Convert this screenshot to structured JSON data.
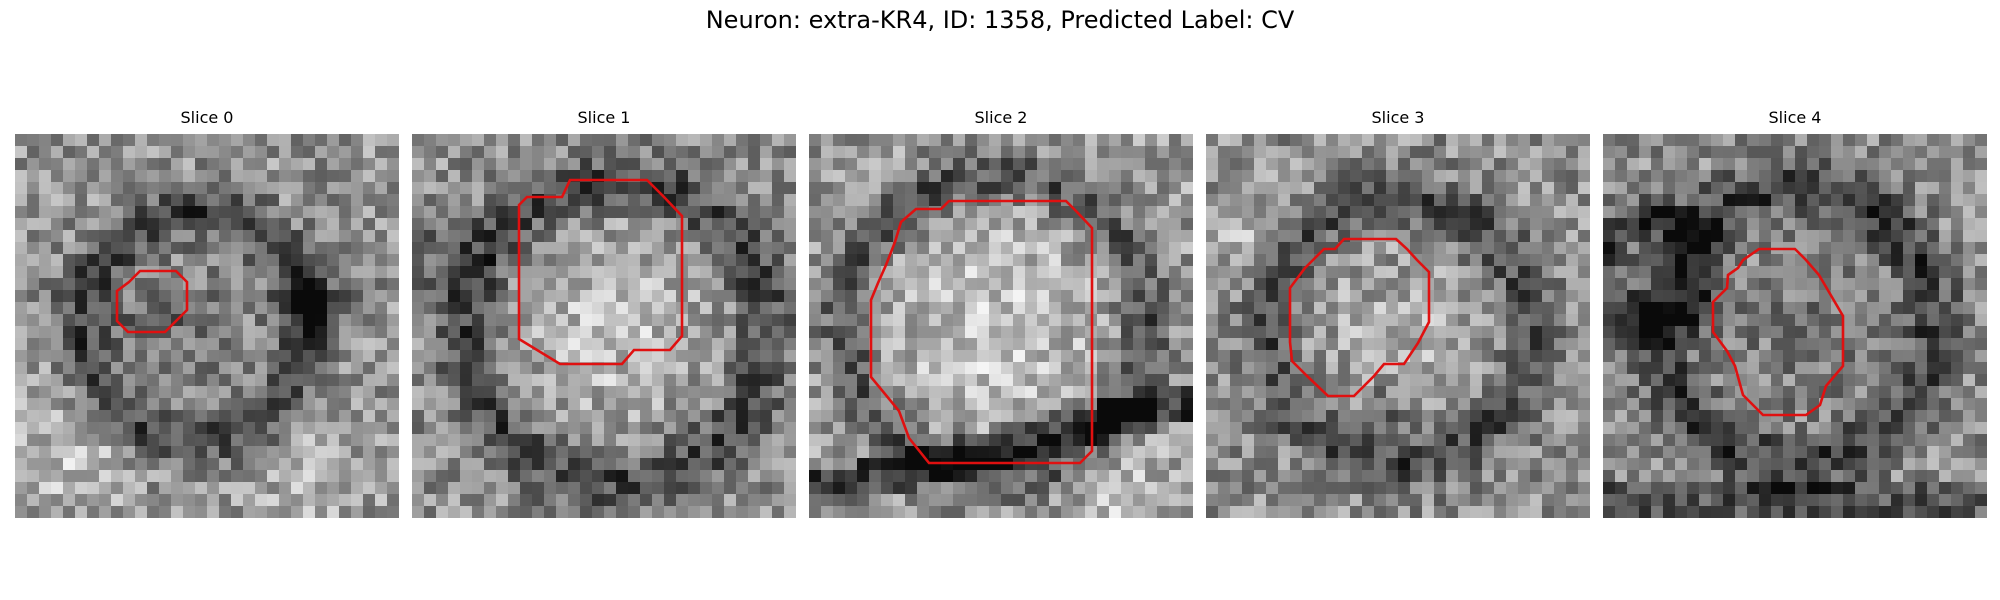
{
  "figure": {
    "title": "Neuron: extra-KR4, ID: 1358, Predicted Label: CV",
    "contour_color": "#e01010",
    "colormap": "gray",
    "panels": [
      {
        "title": "Slice 0"
      },
      {
        "title": "Slice 1"
      },
      {
        "title": "Slice 2"
      },
      {
        "title": "Slice 3"
      },
      {
        "title": "Slice 4"
      }
    ]
  }
}
